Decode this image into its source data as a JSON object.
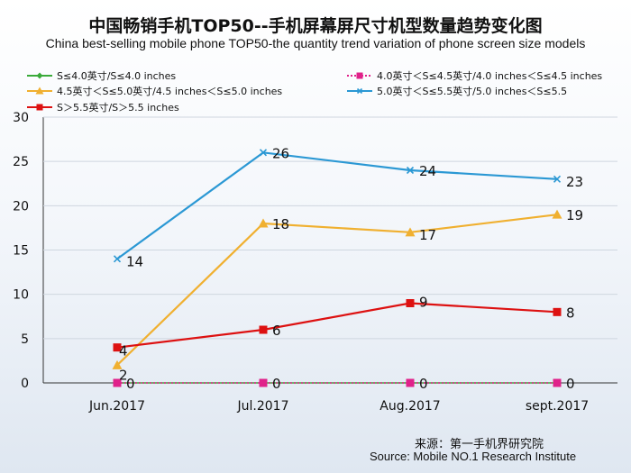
{
  "header": {
    "title": "中国畅销手机TOP50--手机屏幕屏尺寸机型数量趋势变化图",
    "subtitle": "China best-selling mobile phone TOP50-the quantity trend variation of phone screen size models"
  },
  "source": {
    "cn": "来源：第一手机界研究院",
    "en": "Source: Mobile NO.1 Research Institute"
  },
  "chart_data": {
    "type": "line",
    "title": "中国畅销手机TOP50--手机屏幕屏尺寸机型数量趋势变化图",
    "subtitle": "China best-selling mobile phone TOP50-the quantity trend variation of phone screen size models",
    "categories": [
      "Jun.2017",
      "Jul.2017",
      "Aug.2017",
      "sept.2017"
    ],
    "ylim": [
      0,
      30
    ],
    "yticks": [
      0,
      5,
      10,
      15,
      20,
      25,
      30
    ],
    "grid": true,
    "legend_position": "top",
    "series": [
      {
        "name": "S≤4.0英寸/S≤4.0 inches",
        "values": [
          0,
          0,
          0,
          0
        ],
        "color": "#3aaa3a",
        "marker": "diamond",
        "dash": false
      },
      {
        "name": "4.0英寸＜S≤4.5英寸/4.0 inches＜S≤4.5 inches",
        "values": [
          0,
          0,
          0,
          0
        ],
        "color": "#e0218a",
        "marker": "square",
        "dash": true
      },
      {
        "name": "4.5英寸＜S≤5.0英寸/4.5 inches＜S≤5.0 inches",
        "values": [
          2,
          18,
          17,
          19
        ],
        "color": "#f0b030",
        "marker": "triangle",
        "dash": false
      },
      {
        "name": "5.0英寸＜S≤5.5英寸/5.0 inches＜S≤5.5",
        "values": [
          14,
          26,
          24,
          23
        ],
        "color": "#2b98d4",
        "marker": "x",
        "dash": false
      },
      {
        "name": "S＞5.5英寸/S＞5.5 inches",
        "values": [
          4,
          6,
          9,
          8
        ],
        "color": "#dd1111",
        "marker": "square",
        "dash": false
      }
    ]
  }
}
